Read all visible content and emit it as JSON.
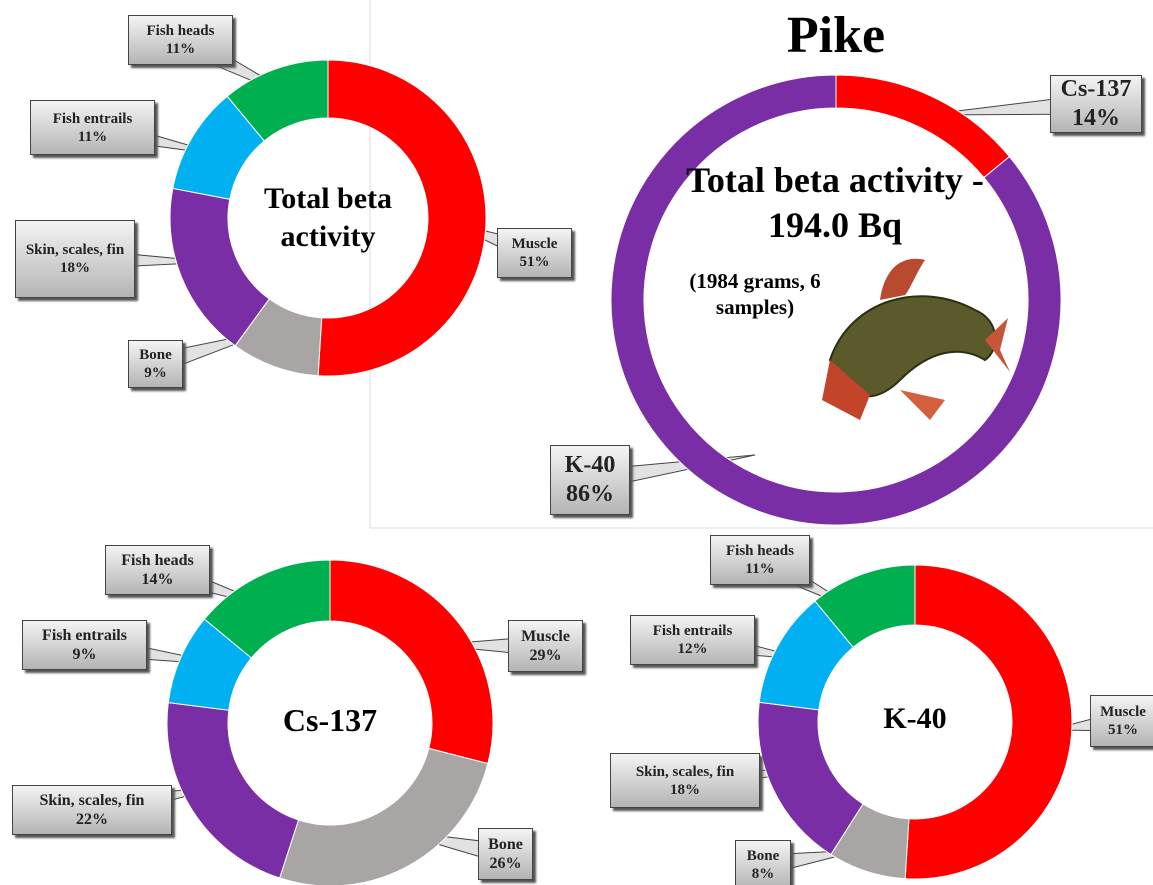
{
  "chart_data": [
    {
      "type": "donut",
      "center_text": "Total beta activity",
      "categories": [
        "Muscle",
        "Bone",
        "Skin, scales, fin",
        "Fish entrails",
        "Fish heads"
      ],
      "values": [
        51,
        9,
        18,
        11,
        11
      ],
      "value_labels": [
        "51%",
        "9%",
        "18%",
        "11%",
        "11%"
      ],
      "colors": [
        "#ff0000",
        "#aaa5a5",
        "#7a2ea6",
        "#00b0f0",
        "#00b050"
      ]
    },
    {
      "type": "donut",
      "title": "Pike",
      "center_text": "Total beta activity - 194.0 Bq",
      "subtitle": "(1984 grams, 6 samples)",
      "categories": [
        "Cs-137",
        "K-40"
      ],
      "values": [
        14,
        86
      ],
      "value_labels": [
        "14%",
        "86%"
      ],
      "colors": [
        "#ff0000",
        "#7a2ea6"
      ]
    },
    {
      "type": "donut",
      "center_text": "Cs-137",
      "categories": [
        "Muscle",
        "Bone",
        "Skin, scales, fin",
        "Fish entrails",
        "Fish heads"
      ],
      "values": [
        29,
        26,
        22,
        9,
        14
      ],
      "value_labels": [
        "29%",
        "26%",
        "22%",
        "9%",
        "14%"
      ],
      "colors": [
        "#ff0000",
        "#aaa5a5",
        "#7a2ea6",
        "#00b0f0",
        "#00b050"
      ]
    },
    {
      "type": "donut",
      "center_text": "K-40",
      "categories": [
        "Muscle",
        "Bone",
        "Skin, scales, fin",
        "Fish entrails",
        "Fish heads"
      ],
      "values": [
        51,
        8,
        18,
        12,
        11
      ],
      "value_labels": [
        "51%",
        "8%",
        "18%",
        "12%",
        "11%"
      ],
      "colors": [
        "#ff0000",
        "#aaa5a5",
        "#7a2ea6",
        "#00b0f0",
        "#00b050"
      ]
    }
  ]
}
